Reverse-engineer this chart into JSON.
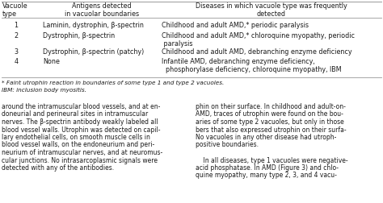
{
  "bg_color": "#ffffff",
  "text_color": "#1a1a1a",
  "line_color": "#999999",
  "header_row": [
    "Vacuole\ntype",
    "Antigens detected\nin vacuolar boundaries",
    "Diseases in which vacuole type was frequently\ndetected"
  ],
  "rows": [
    [
      "1",
      "Laminin, dystrophin, β-spectrin",
      "Childhood and adult AMD,* periodic paralysis"
    ],
    [
      "2",
      "Dystrophin, β-spectrin",
      "Childhood and adult AMD,* chloroquine myopathy, periodic\n paralysis"
    ],
    [
      "3",
      "Dystrophin, β-spectrin (patchy)",
      "Childhood and adult AMD, debranching enzyme deficiency"
    ],
    [
      "4",
      "None",
      "Infantile AMD, debranching enzyme deficiency,\n  phosphorylase deficiency, chloroquine myopathy, IBM"
    ]
  ],
  "footnotes": [
    "* Faint utrophin reaction in boundaries of some type 1 and type 2 vacuoles.",
    "IBM: inclusion body myositis."
  ],
  "body_text_left": [
    "around the intramuscular blood vessels, and at en-",
    "doneurial and perineural sites in intramuscular",
    "nerves. The β-spectrin antibody weakly labeled all",
    "blood vessel walls. Utrophin was detected on capil-",
    "lary endothelial cells, on smooth muscle cells in",
    "blood vessel walls, on the endoneurium and peri-",
    "neurium of intramuscular nerves, and at neuromus-",
    "cular junctions. No intrasarcoplasmic signals were",
    "detected with any of the antibodies."
  ],
  "body_text_right": [
    "phin on their surface. In childhood and adult-on-",
    "AMD, traces of utrophin were found on the bou-",
    "aries of some type 2 vacuoles, but only in those",
    "bers that also expressed utrophin on their surfa-",
    "No vacuoles in any other disease had utroph-",
    "positive boundaries.",
    "",
    "    In all diseases, type 1 vacuoles were negative-",
    "acid phosphatase. In AMD (Figure 3) and chlo-",
    "quine myopathy, many type 2, 3, and 4 vacu-"
  ],
  "header_fontsize": 5.8,
  "body_fontsize": 5.8,
  "footnote_fontsize": 5.2,
  "article_fontsize": 5.5
}
